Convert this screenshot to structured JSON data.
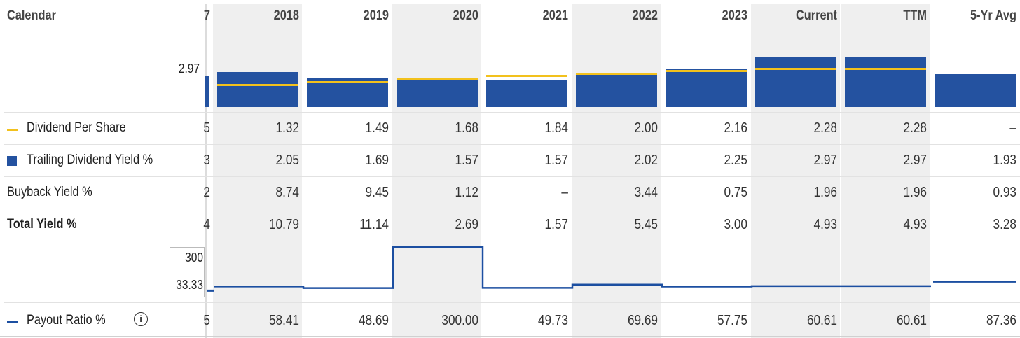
{
  "header": {
    "label": "Calendar",
    "partial": "7"
  },
  "columns": [
    "2018",
    "2019",
    "2020",
    "2021",
    "2022",
    "2023",
    "Current",
    "TTM",
    "5-Yr Avg"
  ],
  "shaded_columns": [
    "2018",
    "2020",
    "2022",
    "Current",
    "TTM"
  ],
  "colors": {
    "bar": "#2452a0",
    "dps_line": "#f2c11d",
    "payout_line": "#1c4fa1",
    "shade": "#efefef"
  },
  "axes": {
    "yield_max_label": "2.97",
    "payout_max_label": "300",
    "payout_mid_label": "33.33"
  },
  "rows": [
    {
      "key": "dps",
      "label": "Dividend Per Share",
      "legend": "yellow-line",
      "bold": false,
      "partial": "5",
      "values": [
        "1.32",
        "1.49",
        "1.68",
        "1.84",
        "2.00",
        "2.16",
        "2.28",
        "2.28",
        "–"
      ]
    },
    {
      "key": "yield",
      "label": "Trailing Dividend Yield %",
      "legend": "blue-box",
      "bold": false,
      "partial": "3",
      "values": [
        "2.05",
        "1.69",
        "1.57",
        "1.57",
        "2.02",
        "2.25",
        "2.97",
        "2.97",
        "1.93"
      ]
    },
    {
      "key": "buyback",
      "label": "Buyback Yield %",
      "legend": "none",
      "bold": false,
      "partial": "2",
      "values": [
        "8.74",
        "9.45",
        "1.12",
        "–",
        "3.44",
        "0.75",
        "1.96",
        "1.96",
        "0.93"
      ]
    },
    {
      "key": "total",
      "label": "Total Yield %",
      "legend": "none",
      "bold": true,
      "partial": "4",
      "values": [
        "10.79",
        "11.14",
        "2.69",
        "1.57",
        "5.45",
        "3.00",
        "4.93",
        "4.93",
        "3.28"
      ]
    }
  ],
  "payout": {
    "label": "Payout Ratio %",
    "partial": "5",
    "values": [
      "58.41",
      "48.69",
      "300.00",
      "49.73",
      "69.69",
      "57.75",
      "60.61",
      "60.61",
      "87.36"
    ]
  },
  "chart_data": [
    {
      "type": "bar",
      "categories": [
        "2018",
        "2019",
        "2020",
        "2021",
        "2022",
        "2023",
        "Current",
        "TTM",
        "5-Yr Avg"
      ],
      "series": [
        {
          "name": "Trailing Dividend Yield %",
          "values": [
            2.05,
            1.69,
            1.57,
            1.57,
            2.02,
            2.25,
            2.97,
            2.97,
            1.93
          ]
        },
        {
          "name": "Dividend Per Share",
          "values": [
            1.32,
            1.49,
            1.68,
            1.84,
            2.0,
            2.16,
            2.28,
            2.28,
            null
          ]
        }
      ],
      "ylim": [
        0,
        2.97
      ]
    },
    {
      "type": "line",
      "categories": [
        "2018",
        "2019",
        "2020",
        "2021",
        "2022",
        "2023",
        "Current",
        "TTM",
        "5-Yr Avg"
      ],
      "series": [
        {
          "name": "Payout Ratio %",
          "values": [
            58.41,
            48.69,
            300.0,
            49.73,
            69.69,
            57.75,
            60.61,
            60.61,
            87.36
          ]
        }
      ],
      "ylim": [
        0,
        300
      ]
    }
  ]
}
